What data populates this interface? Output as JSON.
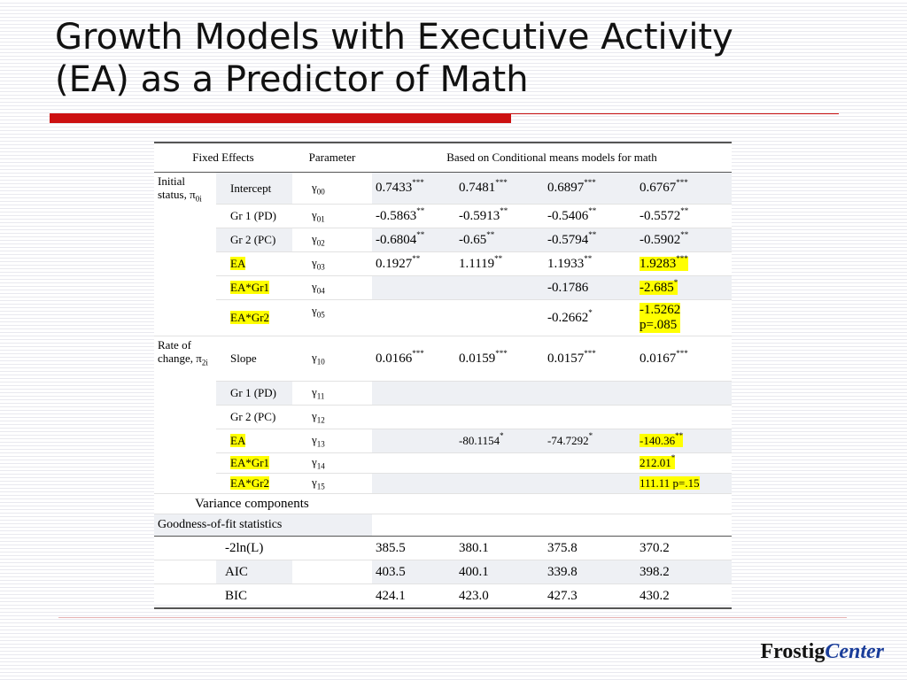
{
  "title": {
    "line1": "Growth Models with Executive Activity",
    "line2": "(EA) as a Predictor of Math"
  },
  "logo": {
    "part1": "Frostig",
    "part2": "Center"
  },
  "table": {
    "headers": {
      "fixed_effects": "Fixed Effects",
      "parameter": "Parameter",
      "models": "Based on Conditional means models for math"
    },
    "groups": {
      "initial": "Initial status, π",
      "initial_sub": "0i",
      "rate": "Rate of change, π",
      "rate_sub": "2i"
    },
    "rows": [
      {
        "effect": "Intercept",
        "param": "γ",
        "sub": "00",
        "v1": "0.7433",
        "s1": "***",
        "v2": "0.7481",
        "s2": "***",
        "v3": "0.6897",
        "s3": "***",
        "v4": "0.6767",
        "s4": "***"
      },
      {
        "effect": "Gr 1 (PD)",
        "param": "γ",
        "sub": "01",
        "v1": "-0.5863",
        "s1": "**",
        "v2": "-0.5913",
        "s2": "**",
        "v3": "-0.5406",
        "s3": "**",
        "v4": "-0.5572",
        "s4": "**"
      },
      {
        "effect": "Gr 2 (PC)",
        "param": "γ",
        "sub": "02",
        "v1": "-0.6804",
        "s1": "**",
        "v2": "-0.65",
        "s2": "**",
        "v3": "-0.5794",
        "s3": "**",
        "v4": "-0.5902",
        "s4": "**"
      },
      {
        "effect": "EA",
        "param": "γ",
        "sub": "03",
        "v1": "0.1927",
        "s1": "**",
        "v2": "1.1119",
        "s2": "**",
        "v3": "1.1933",
        "s3": "**",
        "v4": "1.9283",
        "s4": "***"
      },
      {
        "effect": "EA*Gr1",
        "param": "γ",
        "sub": "04",
        "v3": "-0.1786",
        "v4": "-2.685",
        "s4": "*"
      },
      {
        "effect": "EA*Gr2",
        "param": "γ",
        "sub": "05",
        "v3": "-0.2662",
        "s3": "*",
        "v4a": "-1.5262",
        "v4b": "p=.085"
      },
      {
        "effect": "Slope",
        "param": "γ",
        "sub": "10",
        "v1": "0.0166",
        "s1": "***",
        "v2": "0.0159",
        "s2": "***",
        "v3": "0.0157",
        "s3": "***",
        "v4": "0.0167",
        "s4": "***"
      },
      {
        "effect": "Gr 1 (PD)",
        "param": "γ",
        "sub": "11"
      },
      {
        "effect": "Gr 2 (PC)",
        "param": "γ",
        "sub": "12"
      },
      {
        "effect": "EA",
        "param": "γ",
        "sub": "13",
        "v2": "-80.1154",
        "s2": "*",
        "v3": "-74.7292",
        "s3": "*",
        "v4": "-140.36",
        "s4": "**"
      },
      {
        "effect": "EA*Gr1",
        "param": "γ",
        "sub": "14",
        "v4": "212.01",
        "s4": "*"
      },
      {
        "effect": "EA*Gr2",
        "param": "γ",
        "sub": "15",
        "v4": "111.11 p=.15"
      }
    ],
    "variance_label": "Variance components",
    "fit_label": "Goodness-of-fit statistics",
    "fit_rows": [
      {
        "label": "-2ln(L)",
        "v1": "385.5",
        "v2": "380.1",
        "v3": "375.8",
        "v4": "370.2"
      },
      {
        "label": "AIC",
        "v1": "403.5",
        "v2": "400.1",
        "v3": "339.8",
        "v4": "398.2"
      },
      {
        "label": "BIC",
        "v1": "424.1",
        "v2": "423.0",
        "v3": "427.3",
        "v4": "430.2"
      }
    ]
  }
}
